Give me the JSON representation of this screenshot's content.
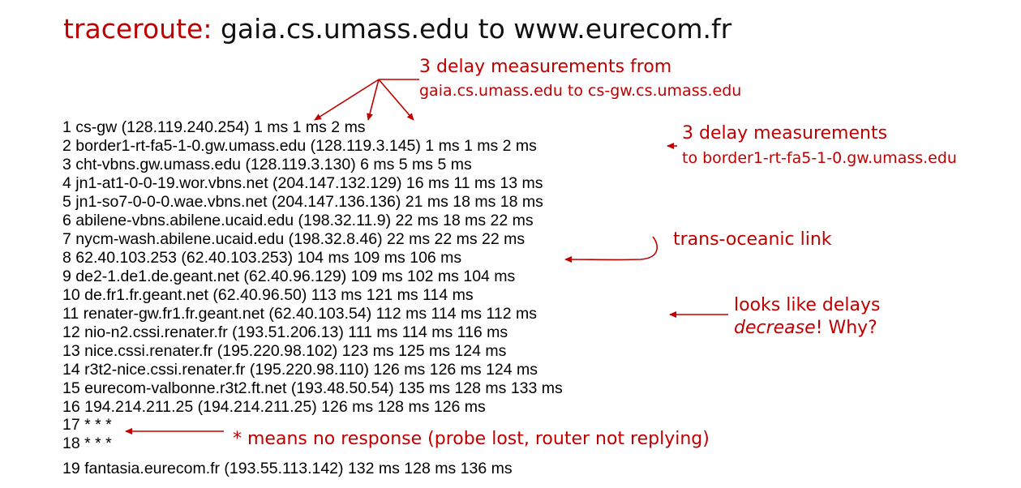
{
  "title": {
    "keyword": "traceroute:",
    "rest": " gaia.cs.umass.edu to www.eurecom.fr"
  },
  "routes": [
    "1  cs-gw (128.119.240.254)  1 ms  1 ms  2 ms",
    "2  border1-rt-fa5-1-0.gw.umass.edu (128.119.3.145)  1 ms  1 ms  2 ms",
    "3  cht-vbns.gw.umass.edu (128.119.3.130)  6 ms 5 ms 5 ms",
    "4  jn1-at1-0-0-19.wor.vbns.net (204.147.132.129)  16 ms 11 ms 13 ms",
    "5  jn1-so7-0-0-0.wae.vbns.net (204.147.136.136)  21 ms 18 ms 18 ms",
    "6  abilene-vbns.abilene.ucaid.edu (198.32.11.9)  22 ms  18 ms  22 ms",
    "7  nycm-wash.abilene.ucaid.edu (198.32.8.46)  22 ms  22 ms  22 ms",
    "8  62.40.103.253 (62.40.103.253)  104 ms 109 ms 106 ms",
    "9  de2-1.de1.de.geant.net (62.40.96.129)  109 ms 102 ms 104 ms",
    "10  de.fr1.fr.geant.net (62.40.96.50)  113 ms 121 ms 114 ms",
    "11  renater-gw.fr1.fr.geant.net (62.40.103.54)  112 ms  114 ms  112 ms",
    "12  nio-n2.cssi.renater.fr (193.51.206.13)  111 ms  114 ms  116 ms",
    "13  nice.cssi.renater.fr (195.220.98.102)  123 ms  125 ms  124 ms",
    "14  r3t2-nice.cssi.renater.fr (195.220.98.110)  126 ms  126 ms  124 ms",
    "15  eurecom-valbonne.r3t2.ft.net (193.48.50.54)  135 ms  128 ms  133 ms",
    "16  194.214.211.25 (194.214.211.25)  126 ms  128 ms  126 ms",
    "17  * * *",
    "18  * * *",
    "19  fantasia.eurecom.fr (193.55.113.142)  132 ms  128 ms  136 ms"
  ],
  "annotations": {
    "first_hop": {
      "line1": "3 delay measurements from",
      "line2": "gaia.cs.umass.edu to cs-gw.cs.umass.edu"
    },
    "second_hop": {
      "line1": "3 delay measurements",
      "line2": "to border1-rt-fa5-1-0.gw.umass.edu"
    },
    "trans_oceanic": "trans-oceanic link",
    "decrease": {
      "prefix": "looks like delays",
      "emphasis": "decrease",
      "suffix": "! Why?"
    },
    "no_response": "* means no response (probe lost, router not replying)"
  },
  "colors": {
    "accent": "#c00000",
    "text": "#000000"
  }
}
